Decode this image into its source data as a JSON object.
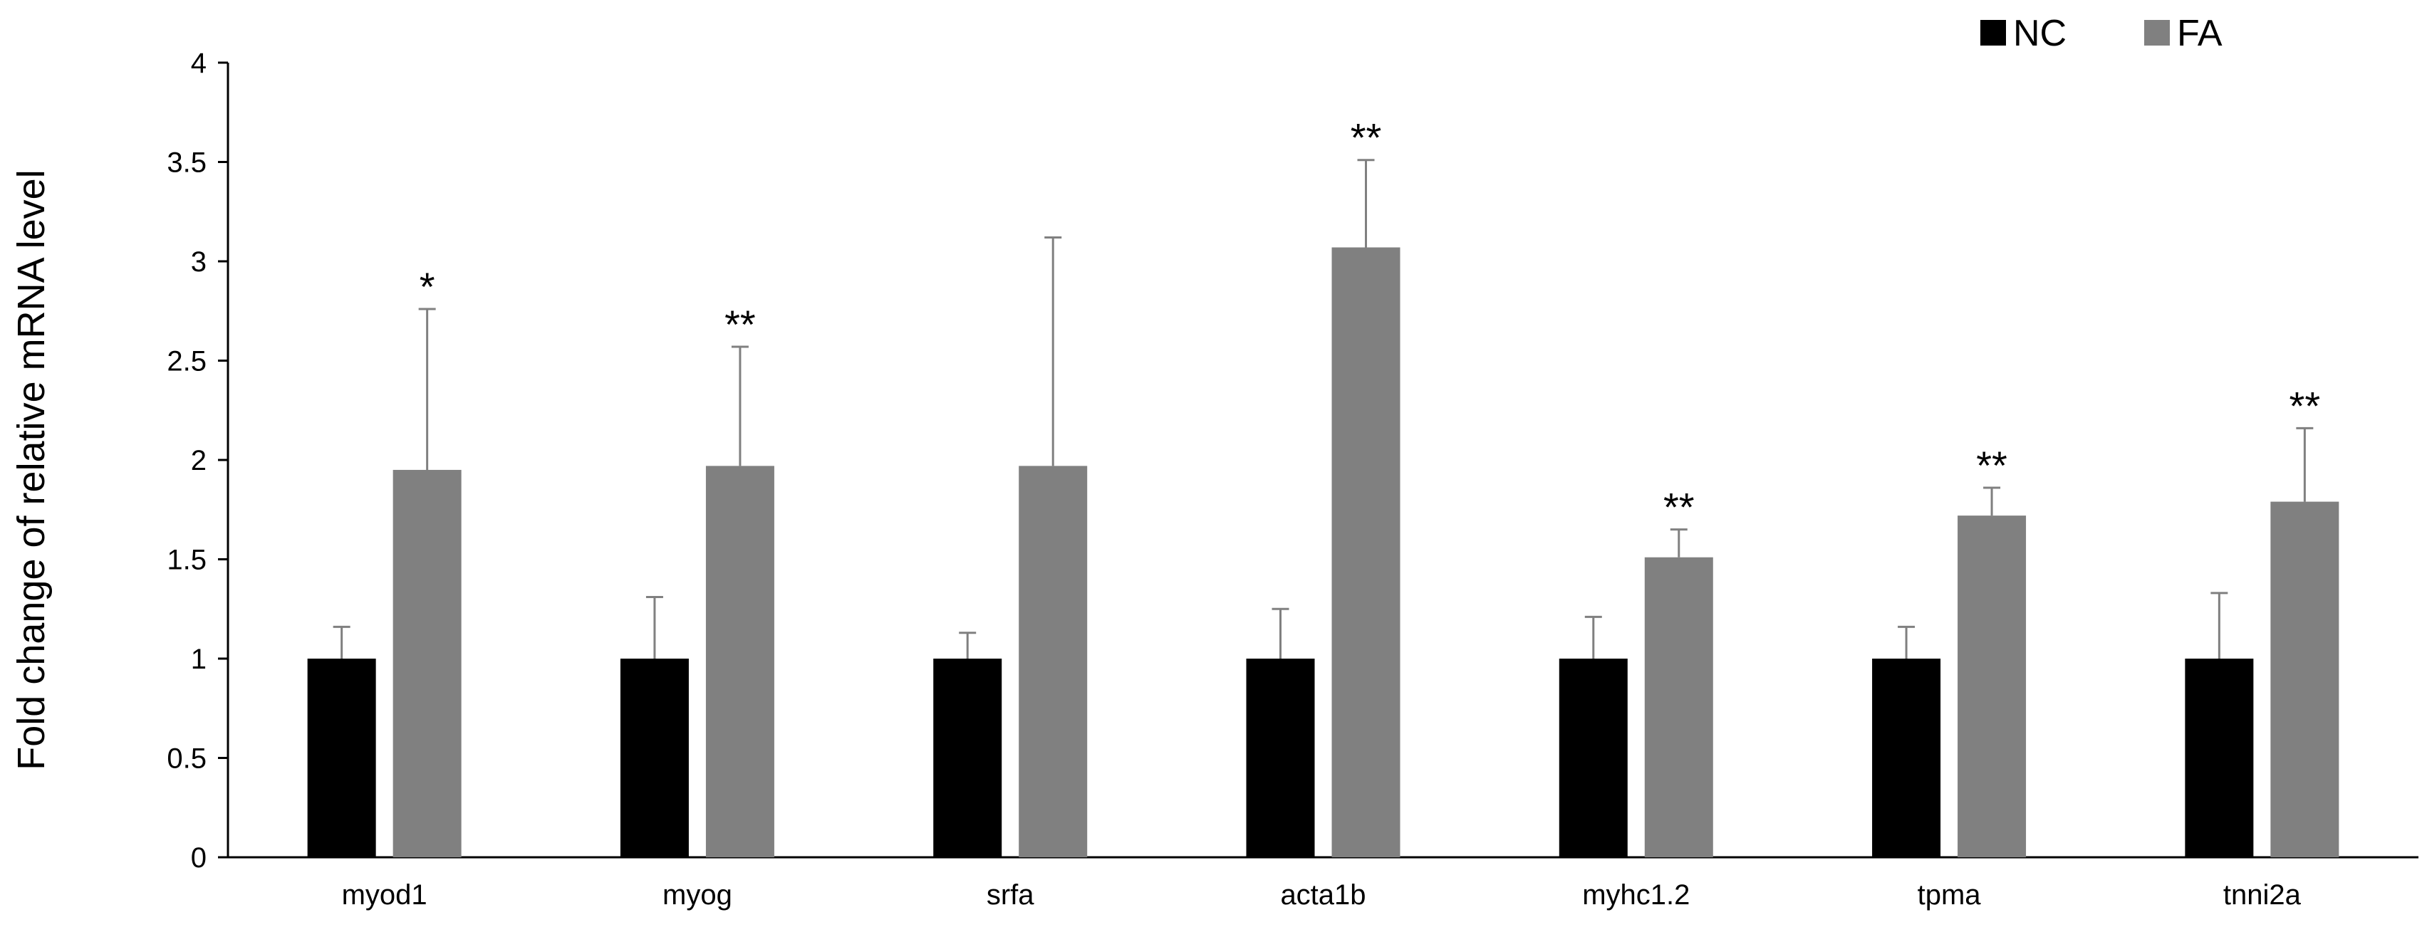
{
  "chart_data": {
    "type": "bar",
    "title": "",
    "xlabel": "",
    "ylabel": "Fold change of relative mRNA level",
    "ylim": [
      0,
      4
    ],
    "yticks": [
      "0",
      "0.5",
      "1",
      "1.5",
      "2",
      "2.5",
      "3",
      "3.5",
      "4"
    ],
    "categories": [
      "myod1",
      "myog",
      "srfa",
      "acta1b",
      "myhc1.2",
      "tpma",
      "tnni2a"
    ],
    "grid": false,
    "legend_position": "top-right",
    "series": [
      {
        "name": "NC",
        "color": "#000000",
        "values": [
          1,
          1,
          1,
          1,
          1,
          1,
          1
        ],
        "errors": [
          0.16,
          0.31,
          0.13,
          0.25,
          0.21,
          0.16,
          0.33
        ]
      },
      {
        "name": "FA",
        "color": "#808080",
        "values": [
          1.95,
          1.97,
          1.97,
          3.07,
          1.51,
          1.72,
          1.79
        ],
        "errors": [
          0.81,
          0.6,
          1.15,
          0.44,
          0.14,
          0.14,
          0.37
        ]
      }
    ],
    "annotations": [
      "*",
      "**",
      "",
      "**",
      "**",
      "**",
      "**"
    ]
  }
}
